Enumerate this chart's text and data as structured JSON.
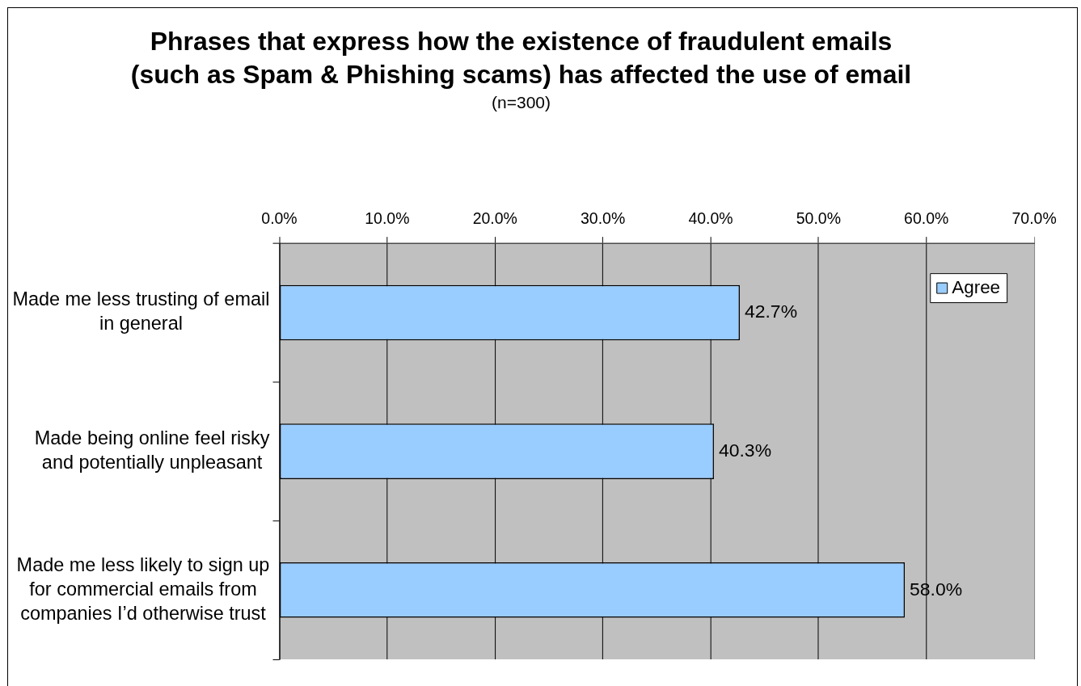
{
  "chart_data": {
    "type": "bar",
    "orientation": "horizontal",
    "title": "Phrases that express how the existence of fraudulent emails (such as Spam & Phishing scams) has affected the use of email",
    "subtitle": "(n=300)",
    "categories": [
      "Made me less trusting of email in general",
      "Made being online feel risky and potentially unpleasant",
      "Made me less likely to sign up for commercial emails from companies I’d otherwise trust"
    ],
    "series": [
      {
        "name": "Agree",
        "color": "#99ccff",
        "values": [
          42.7,
          40.3,
          58.0
        ],
        "value_labels": [
          "42.7%",
          "40.3%",
          "58.0%"
        ]
      }
    ],
    "xlim": [
      0,
      70
    ],
    "xticks": [
      {
        "value": 0,
        "label": "0.0%"
      },
      {
        "value": 10,
        "label": "10.0%"
      },
      {
        "value": 20,
        "label": "20.0%"
      },
      {
        "value": 30,
        "label": "30.0%"
      },
      {
        "value": 40,
        "label": "40.0%"
      },
      {
        "value": 50,
        "label": "50.0%"
      },
      {
        "value": 60,
        "label": "60.0%"
      },
      {
        "value": 70,
        "label": "70.0%"
      }
    ],
    "grid": "x",
    "legend": "top right"
  }
}
